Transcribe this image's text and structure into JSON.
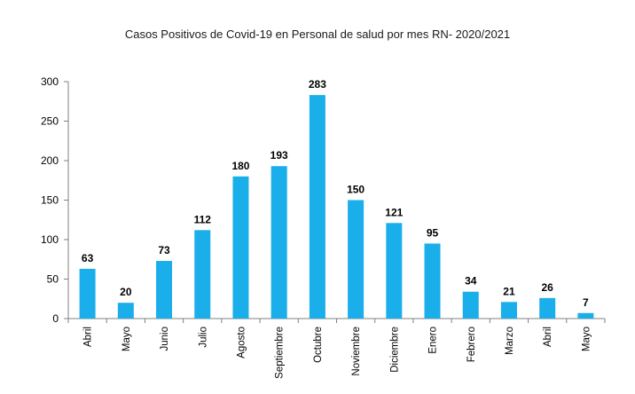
{
  "chart_data": {
    "type": "bar",
    "title": "Casos Positivos de Covid-19 en Personal de salud por mes RN- 2020/2021",
    "categories": [
      "Abril",
      "Mayo",
      "Junio",
      "Julio",
      "Agosto",
      "Septiembre",
      "Octubre",
      "Noviembre",
      "Diciembre",
      "Enero",
      "Febrero",
      "Marzo",
      "Abril",
      "Mayo"
    ],
    "values": [
      63,
      20,
      73,
      112,
      180,
      193,
      283,
      150,
      121,
      95,
      34,
      21,
      26,
      7
    ],
    "xlabel": "",
    "ylabel": "",
    "ylim": [
      0,
      300
    ],
    "yticks": [
      0,
      50,
      100,
      150,
      200,
      250,
      300
    ],
    "grid": false,
    "legend": "none",
    "bar_color": "#1aaeea",
    "axis_color": "#808080"
  }
}
